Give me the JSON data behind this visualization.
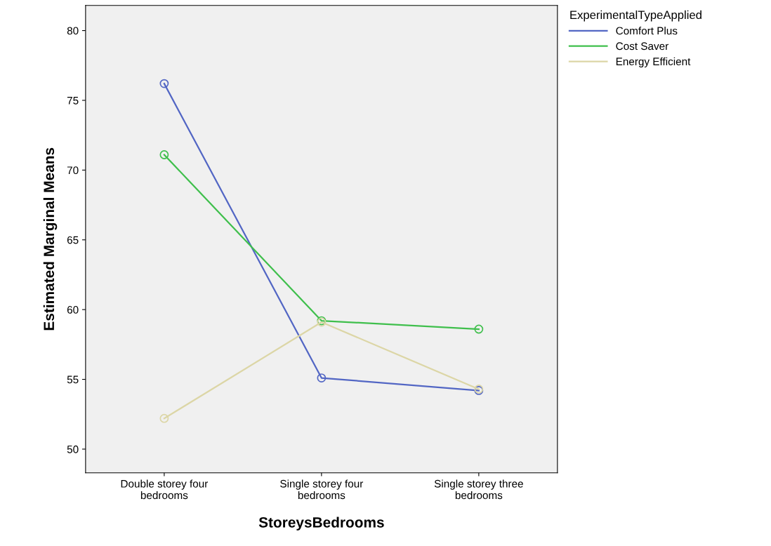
{
  "chart_data": {
    "type": "line",
    "xlabel": "StoreysBedrooms",
    "ylabel": "Estimated Marginal Means",
    "categories": [
      "Double storey four\nbedrooms",
      "Single storey four\nbedrooms",
      "Single storey three\nbedrooms"
    ],
    "series": [
      {
        "name": "Comfort Plus",
        "color": "#5266c4",
        "values": [
          76.2,
          55.1,
          54.2
        ]
      },
      {
        "name": "Cost Saver",
        "color": "#3fbf4c",
        "values": [
          71.1,
          59.2,
          58.6
        ]
      },
      {
        "name": "Energy Efficient",
        "color": "#dcd6a6",
        "values": [
          52.2,
          59.1,
          54.3
        ]
      }
    ],
    "legend_title": "ExperimentalTypeApplied",
    "legend": "top right",
    "ylim": [
      48.3,
      81.8
    ],
    "yticks": [
      50,
      55,
      60,
      65,
      70,
      75,
      80
    ],
    "marker": "circle",
    "grid": false
  }
}
